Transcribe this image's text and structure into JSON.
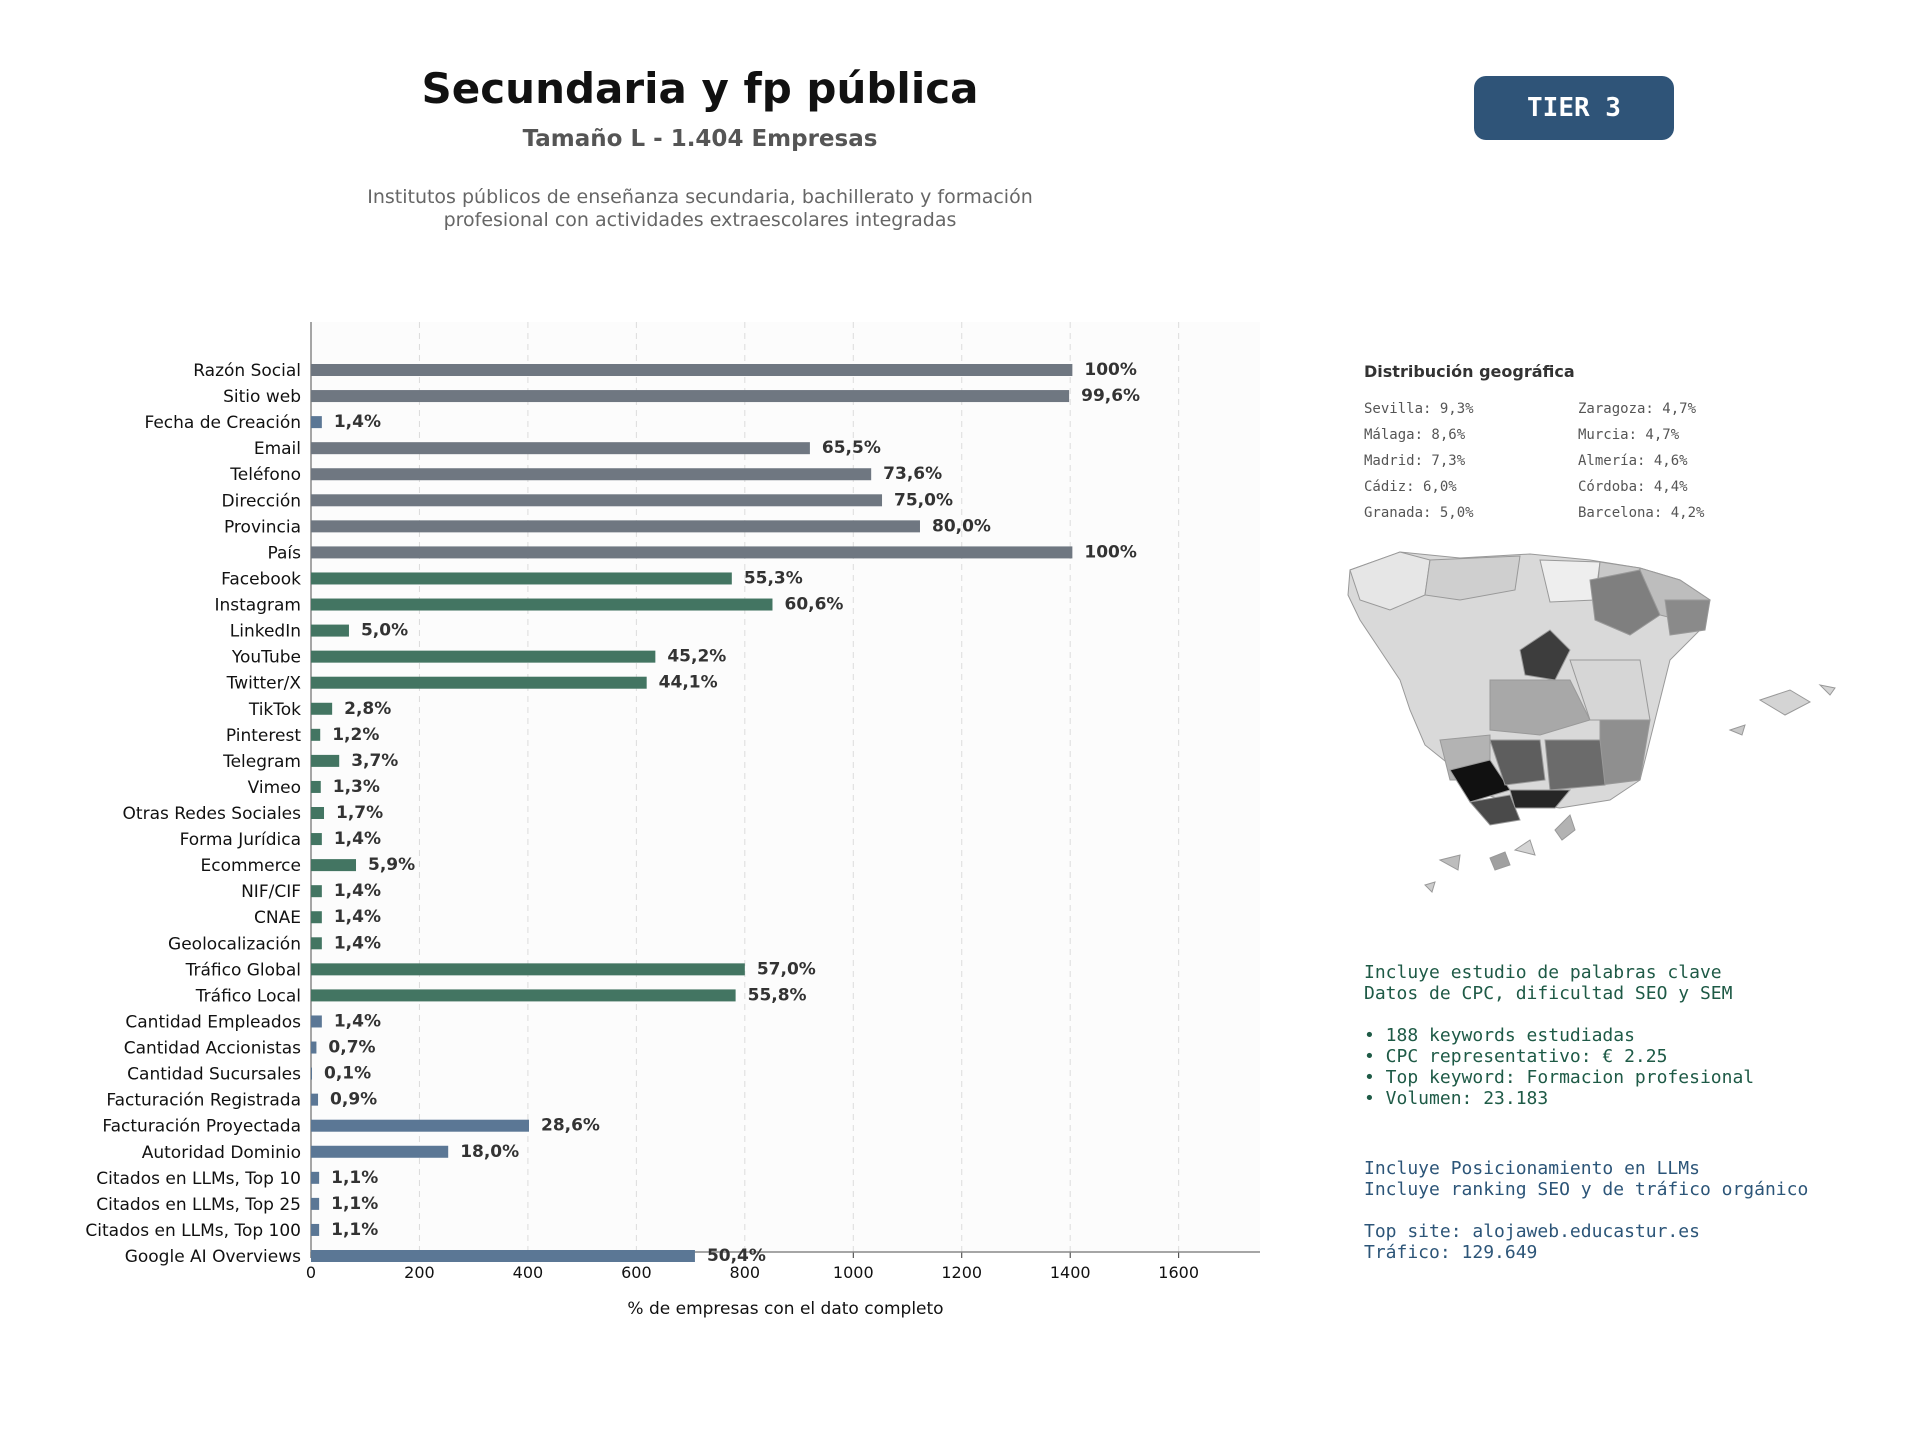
{
  "header": {
    "title": "Secundaria y fp pública",
    "subtitle": "Tamaño L - 1.404 Empresas",
    "description_line1": "Institutos públicos de enseñanza secundaria, bachillerato y formación",
    "description_line2": "profesional con actividades extraescolares integradas",
    "tier": "TIER 3"
  },
  "colors": {
    "gray": "#6f7781",
    "green": "#437562",
    "blue": "#5b7795",
    "tier_bg": "#2f5478"
  },
  "chart_data": {
    "type": "bar",
    "orientation": "horizontal",
    "xlabel": "% de empresas con el dato completo",
    "xlim": [
      0,
      1750
    ],
    "xticks": [
      0,
      200,
      400,
      600,
      800,
      1000,
      1200,
      1400,
      1600
    ],
    "grid": "vertical dashed",
    "categories": [
      "Razón Social",
      "Sitio web",
      "Fecha de Creación",
      "Email",
      "Teléfono",
      "Dirección",
      "Provincia",
      "País",
      "Facebook",
      "Instagram",
      "LinkedIn",
      "YouTube",
      "Twitter/X",
      "TikTok",
      "Pinterest",
      "Telegram",
      "Vimeo",
      "Otras Redes Sociales",
      "Forma Jurídica",
      "Ecommerce",
      "NIF/CIF",
      "CNAE",
      "Geolocalización",
      "Tráfico Global",
      "Tráfico Local",
      "Cantidad Empleados",
      "Cantidad Accionistas",
      "Cantidad Sucursales",
      "Facturación Registrada",
      "Facturación Proyectada",
      "Autoridad Dominio",
      "Citados en LLMs, Top 10",
      "Citados en LLMs, Top 25",
      "Citados en LLMs, Top 100",
      "Google AI Overviews"
    ],
    "values": [
      1404,
      1398,
      20,
      920,
      1033,
      1053,
      1123,
      1404,
      776,
      851,
      70,
      635,
      619,
      39,
      17,
      52,
      18,
      24,
      20,
      83,
      20,
      20,
      20,
      800,
      783,
      20,
      10,
      1,
      13,
      402,
      253,
      15,
      15,
      15,
      708
    ],
    "labels": [
      "100%",
      "99,6%",
      "1,4%",
      "65,5%",
      "73,6%",
      "75,0%",
      "80,0%",
      "100%",
      "55,3%",
      "60,6%",
      "5,0%",
      "45,2%",
      "44,1%",
      "2,8%",
      "1,2%",
      "3,7%",
      "1,3%",
      "1,7%",
      "1,4%",
      "5,9%",
      "1,4%",
      "1,4%",
      "1,4%",
      "57,0%",
      "55,8%",
      "1,4%",
      "0,7%",
      "0,1%",
      "0,9%",
      "28,6%",
      "18,0%",
      "1,1%",
      "1,1%",
      "1,1%",
      "50,4%"
    ],
    "groups": [
      "gray",
      "gray",
      "blue",
      "gray",
      "gray",
      "gray",
      "gray",
      "gray",
      "green",
      "green",
      "green",
      "green",
      "green",
      "green",
      "green",
      "green",
      "green",
      "green",
      "green",
      "green",
      "green",
      "green",
      "green",
      "green",
      "green",
      "blue",
      "blue",
      "blue",
      "blue",
      "blue",
      "blue",
      "blue",
      "blue",
      "blue",
      "blue"
    ]
  },
  "geo": {
    "title": "Distribución geográfica",
    "left": [
      "Sevilla: 9,3%",
      "Málaga: 8,6%",
      "Madrid: 7,3%",
      "Cádiz: 6,0%",
      "Granada: 5,0%"
    ],
    "right": [
      "Zaragoza: 4,7%",
      "Murcia: 4,7%",
      "Almería: 4,6%",
      "Córdoba: 4,4%",
      "Barcelona: 4,2%"
    ]
  },
  "keywords": {
    "line1": "Incluye estudio de palabras clave",
    "line2": "Datos de CPC, dificultad SEO y SEM",
    "bullet1": "• 188 keywords estudiadas",
    "bullet2": "• CPC representativo: € 2.25",
    "bullet3": "• Top keyword: Formacion profesional",
    "bullet4": "• Volumen: 23.183"
  },
  "llm": {
    "line1": "Incluye Posicionamiento en LLMs",
    "line2": "Incluye ranking SEO y de tráfico orgánico",
    "line3": "Top site: alojaweb.educastur.es",
    "line4": "Tráfico: 129.649"
  }
}
